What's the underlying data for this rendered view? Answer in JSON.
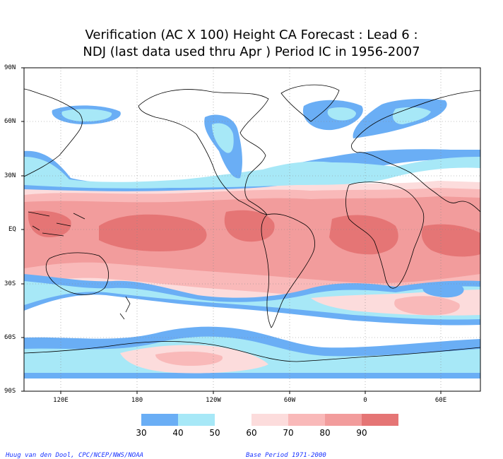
{
  "title": {
    "line1": "Verification (AC X 100) Height CA Forecast : Lead 6 :",
    "line2": "NDJ (last data used thru Apr ) Period IC in 1956-2007"
  },
  "axes": {
    "lat_labels": [
      "90N",
      "60N",
      "30N",
      "EQ",
      "30S",
      "60S",
      "90S"
    ],
    "lon_labels": [
      "120E",
      "180",
      "120W",
      "60W",
      "0",
      "60E"
    ]
  },
  "legend": {
    "labels": [
      "30",
      "40",
      "50",
      "60",
      "70",
      "80",
      "90"
    ],
    "colors": [
      "#6aaef5",
      "#a7e8f7",
      "#ffffff",
      "#fcdcdc",
      "#f9b9b9",
      "#f29c9c",
      "#e57575",
      "#dc6262"
    ]
  },
  "credits": {
    "left": "Huug van den Dool, CPC/NCEP/NWS/NOAA",
    "right": "Base Period 1971-2000"
  }
}
